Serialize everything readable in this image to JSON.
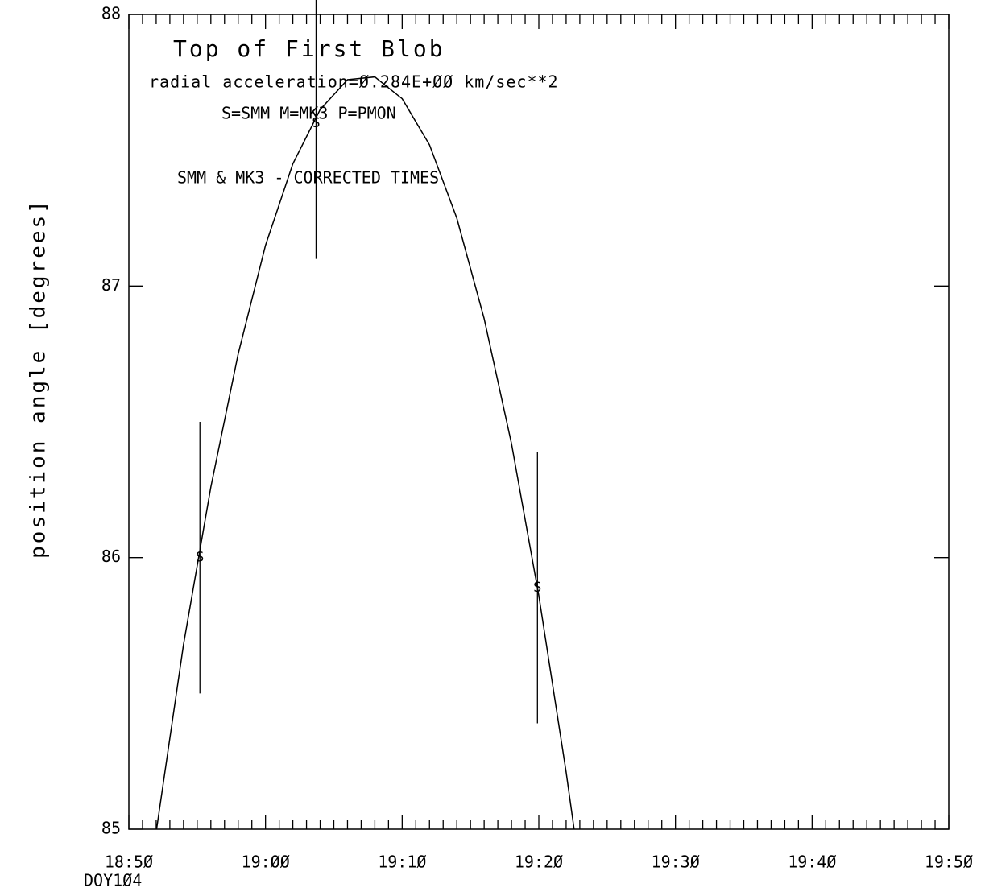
{
  "chart_data": {
    "type": "line",
    "title": "Top of First Blob",
    "annotations": [
      "radial acceleration=Ø.284E+ØØ  km/sec**2",
      "S=SMM  M=MK3  P=PMON",
      "SMM & MK3 - CORRECTED TIMES"
    ],
    "y_label": "position angle [degrees]",
    "x_sublabel": "DOY1Ø4",
    "xlim": [
      1130,
      1190
    ],
    "ylim": [
      85,
      88
    ],
    "xticks": [
      {
        "value": 1130,
        "label": "18:5Ø"
      },
      {
        "value": 1140,
        "label": "19:ØØ"
      },
      {
        "value": 1150,
        "label": "19:1Ø"
      },
      {
        "value": 1160,
        "label": "19:2Ø"
      },
      {
        "value": 1170,
        "label": "19:3Ø"
      },
      {
        "value": 1180,
        "label": "19:4Ø"
      },
      {
        "value": 1190,
        "label": "19:5Ø"
      }
    ],
    "xminorticks": [
      1131,
      1132,
      1133,
      1134,
      1135,
      1136,
      1137,
      1138,
      1139,
      1141,
      1142,
      1143,
      1144,
      1145,
      1146,
      1147,
      1148,
      1149,
      1151,
      1152,
      1153,
      1154,
      1155,
      1156,
      1157,
      1158,
      1159,
      1161,
      1162,
      1163,
      1164,
      1165,
      1166,
      1167,
      1168,
      1169,
      1171,
      1172,
      1173,
      1174,
      1175,
      1176,
      1177,
      1178,
      1179,
      1181,
      1182,
      1183,
      1184,
      1185,
      1186,
      1187,
      1188,
      1189
    ],
    "yticks": [
      85,
      86,
      87,
      88
    ],
    "series": [
      {
        "name": "SMM",
        "marker": "S",
        "color": "#000000",
        "x": [
          1135.2,
          1143.7,
          1159.9
        ],
        "values": [
          86.0,
          87.6,
          85.89
        ],
        "errors": [
          0.5,
          0.5,
          0.5
        ]
      },
      {
        "name": "fit",
        "color": "#000000",
        "x": [
          1132,
          1134,
          1136,
          1138,
          1140,
          1142,
          1144,
          1146,
          1148,
          1150,
          1152,
          1154,
          1156,
          1158,
          1160,
          1162,
          1163
        ],
        "values": [
          84.99,
          85.68,
          86.26,
          86.75,
          87.15,
          87.45,
          87.65,
          87.76,
          87.77,
          87.69,
          87.52,
          87.25,
          86.88,
          86.42,
          85.86,
          85.21,
          84.85
        ]
      }
    ]
  }
}
